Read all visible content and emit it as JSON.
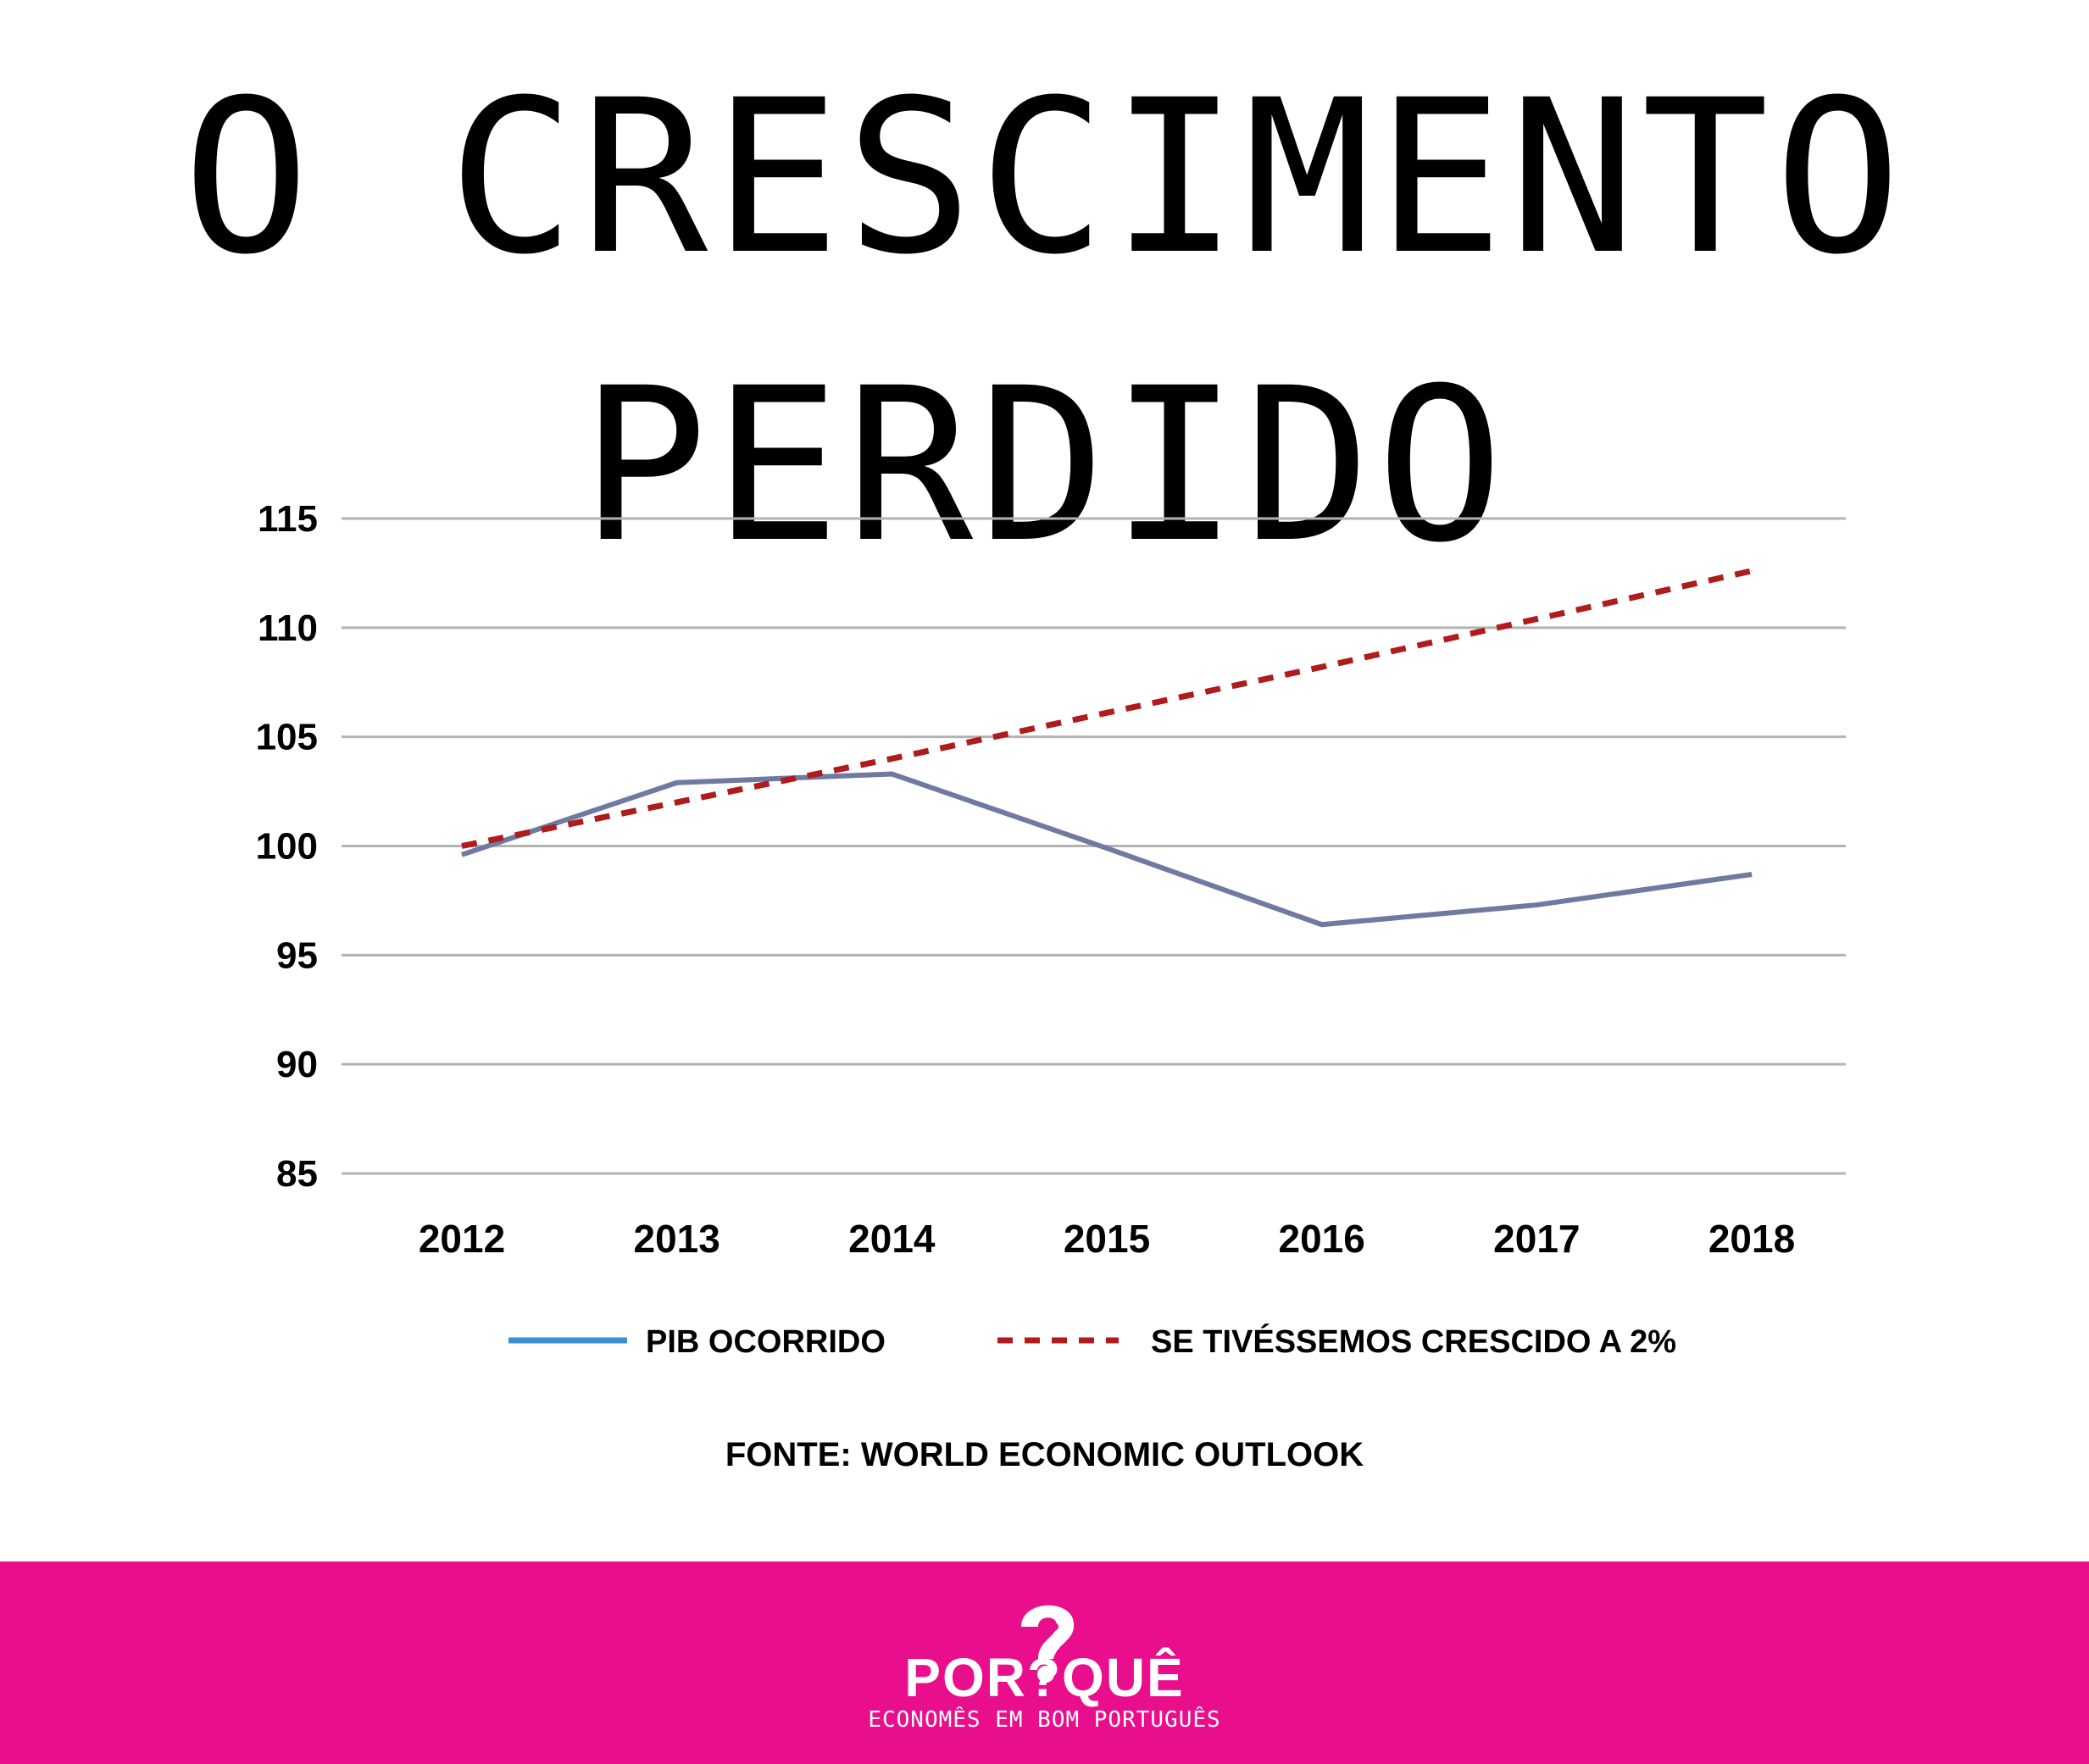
{
  "title": "O CRESCIMENTO PERDIDO",
  "chart_data": {
    "type": "line",
    "x": [
      "2012",
      "2013",
      "2014",
      "2015",
      "2016",
      "2017",
      "2018"
    ],
    "yticks": [
      "85",
      "90",
      "95",
      "100",
      "105",
      "110",
      "115"
    ],
    "ylim": [
      85,
      115
    ],
    "grid": true,
    "legend_placement": "bottom",
    "series": [
      {
        "name": "PIB OCORRIDO",
        "values": [
          99.6,
          102.9,
          103.3,
          99.9,
          96.4,
          97.3,
          98.7
        ],
        "style": "solid",
        "color": "#6e7aa1",
        "legend_color": "#3a8fcf"
      },
      {
        "name": "SE TIVÉSSEMOS CRESCIDO A 2%",
        "values": [
          100.0,
          102.0,
          104.0,
          106.1,
          108.2,
          110.4,
          112.6
        ],
        "style": "dashed",
        "color": "#b01c1c"
      }
    ]
  },
  "source": "FONTE: WORLD ECONOMIC OUTLOOK",
  "footer": {
    "brand": "POR?QUÊ",
    "tagline": "ECONOMÊS EM BOM PORTUGUÊS",
    "background": "#e90e8b"
  }
}
